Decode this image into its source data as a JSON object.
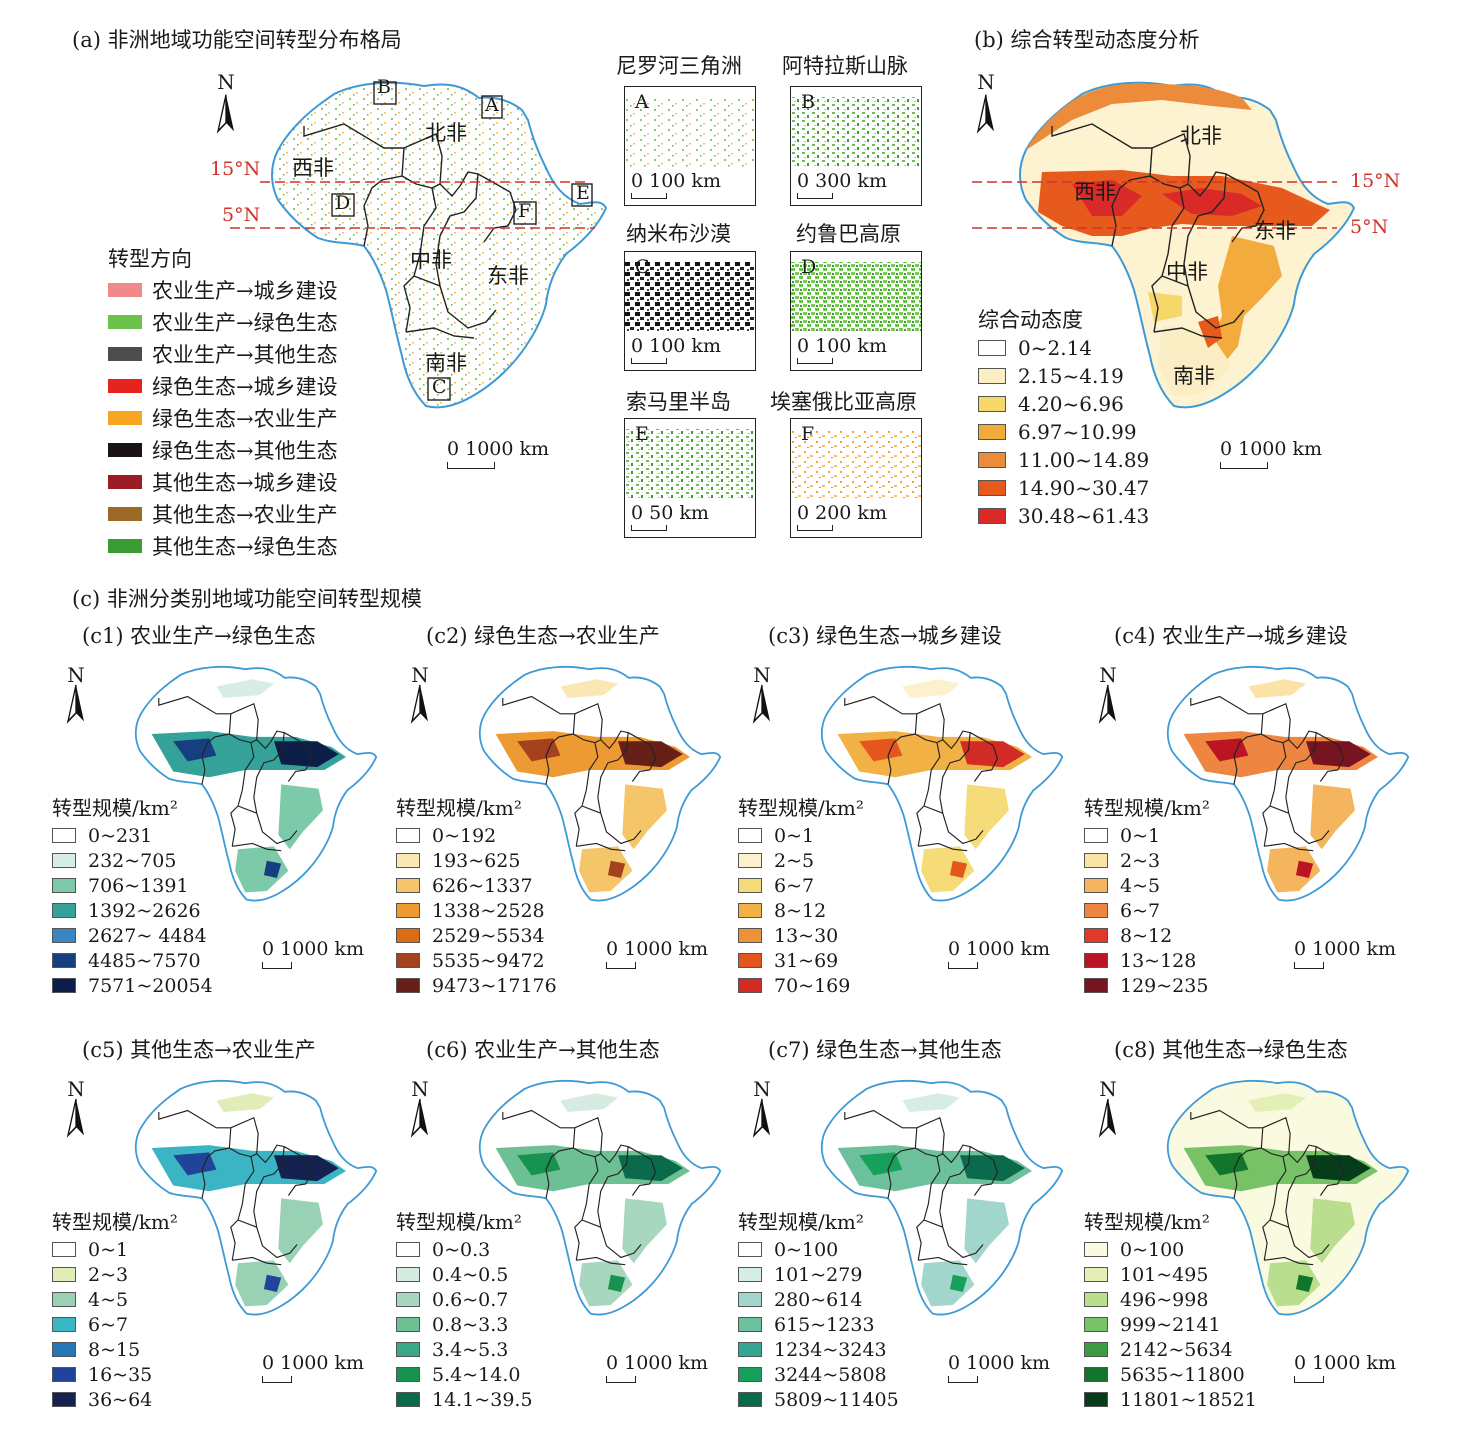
{
  "panel_a": {
    "title": "(a) 非洲地域功能空间转型分布格局",
    "north": "N",
    "lat_15": "15°N",
    "lat_5": "5°N",
    "regions": [
      "北非",
      "西非",
      "中非",
      "东非",
      "南非"
    ],
    "box_labels": [
      "A",
      "B",
      "C",
      "D",
      "E",
      "F"
    ],
    "scale": "0  1000 km",
    "legend_title": "转型方向",
    "legend": [
      {
        "label": "农业生产→城乡建设",
        "color": "#f08a8a"
      },
      {
        "label": "农业生产→绿色生态",
        "color": "#6cc24a"
      },
      {
        "label": "农业生产→其他生态",
        "color": "#4d4d4d"
      },
      {
        "label": "绿色生态→城乡建设",
        "color": "#e52420"
      },
      {
        "label": "绿色生态→农业生产",
        "color": "#f5a623"
      },
      {
        "label": "绿色生态→其他生态",
        "color": "#1a1414"
      },
      {
        "label": "其他生态→城乡建设",
        "color": "#9b1c24"
      },
      {
        "label": "其他生态→农业生产",
        "color": "#9c6a24"
      },
      {
        "label": "其他生态→绿色生态",
        "color": "#3b9b34"
      }
    ]
  },
  "insets": [
    {
      "title": "尼罗河三角洲",
      "letter": "A",
      "scale": "0   100 km"
    },
    {
      "title": "阿特拉斯山脉",
      "letter": "B",
      "scale": "0  300 km"
    },
    {
      "title": "纳米布沙漠",
      "letter": "C",
      "scale": "0   100 km"
    },
    {
      "title": "约鲁巴高原",
      "letter": "D",
      "scale": "0   100 km"
    },
    {
      "title": "索马里半岛",
      "letter": "E",
      "scale": "0  50 km"
    },
    {
      "title": "埃塞俄比亚高原",
      "letter": "F",
      "scale": "0  200 km"
    }
  ],
  "panel_b": {
    "title": "(b) 综合转型动态度分析",
    "north": "N",
    "lat_15": "15°N",
    "lat_5": "5°N",
    "regions": [
      "北非",
      "西非",
      "东非",
      "中非",
      "南非"
    ],
    "scale": "0  1000 km",
    "legend_title": "综合动态度",
    "legend": [
      {
        "label": "0~2.14",
        "color": "#ffffff"
      },
      {
        "label": "2.15~4.19",
        "color": "#fbeec4"
      },
      {
        "label": "4.20~6.96",
        "color": "#f6d76a"
      },
      {
        "label": "6.97~10.99",
        "color": "#f2ab3c"
      },
      {
        "label": "11.00~14.89",
        "color": "#ec8b3a"
      },
      {
        "label": "14.90~30.47",
        "color": "#e75a1e"
      },
      {
        "label": "30.48~61.43",
        "color": "#d92a27"
      }
    ]
  },
  "panel_c": {
    "title": "(c) 非洲分类别地域功能空间转型规模",
    "legend_title": "转型规模/km²",
    "north": "N",
    "scale": "0  1000 km",
    "maps": [
      {
        "title": "(c1) 农业生产→绿色生态",
        "legend": [
          {
            "label": "0~231",
            "color": "#ffffff"
          },
          {
            "label": "232~705",
            "color": "#d7eee4"
          },
          {
            "label": "706~1391",
            "color": "#7ccaa9"
          },
          {
            "label": "1392~2626",
            "color": "#35a29a"
          },
          {
            "label": "2627~ 4484",
            "color": "#3a86c2"
          },
          {
            "label": "4485~7570",
            "color": "#163f80"
          },
          {
            "label": "7571~20054",
            "color": "#0c1d47"
          }
        ]
      },
      {
        "title": "(c2) 绿色生态→农业生产",
        "legend": [
          {
            "label": "0~192",
            "color": "#ffffff"
          },
          {
            "label": "193~625",
            "color": "#fbe7b3"
          },
          {
            "label": "626~1337",
            "color": "#f5c56a"
          },
          {
            "label": "1338~2528",
            "color": "#ee9a32"
          },
          {
            "label": "2529~5534",
            "color": "#dc6c14"
          },
          {
            "label": "5535~9472",
            "color": "#a5421d"
          },
          {
            "label": "9473~17176",
            "color": "#672017"
          }
        ]
      },
      {
        "title": "(c3) 绿色生态→城乡建设",
        "legend": [
          {
            "label": "0~1",
            "color": "#ffffff"
          },
          {
            "label": "2~5",
            "color": "#fdf0cd"
          },
          {
            "label": "6~7",
            "color": "#f6dc78"
          },
          {
            "label": "8~12",
            "color": "#f2b144"
          },
          {
            "label": "13~30",
            "color": "#ec923a"
          },
          {
            "label": "31~69",
            "color": "#e4561b"
          },
          {
            "label": "70~169",
            "color": "#d22a25"
          }
        ]
      },
      {
        "title": "(c4) 农业生产→城乡建设",
        "legend": [
          {
            "label": "0~1",
            "color": "#ffffff"
          },
          {
            "label": "2~3",
            "color": "#fbe2a6"
          },
          {
            "label": "4~5",
            "color": "#f5b45e"
          },
          {
            "label": "6~7",
            "color": "#ee8540"
          },
          {
            "label": "8~12",
            "color": "#e1392a"
          },
          {
            "label": "13~128",
            "color": "#bb1523"
          },
          {
            "label": "129~235",
            "color": "#76151f"
          }
        ]
      },
      {
        "title": "(c5) 其他生态→农业生产",
        "legend": [
          {
            "label": "0~1",
            "color": "#ffffff"
          },
          {
            "label": "2~3",
            "color": "#e0edb8"
          },
          {
            "label": "4~5",
            "color": "#98d1b3"
          },
          {
            "label": "6~7",
            "color": "#3bb5c4"
          },
          {
            "label": "8~15",
            "color": "#2377b7"
          },
          {
            "label": "16~35",
            "color": "#22439a"
          },
          {
            "label": "36~64",
            "color": "#15214f"
          }
        ]
      },
      {
        "title": "(c6) 农业生产→其他生态",
        "legend": [
          {
            "label": "0~0.3",
            "color": "#ffffff"
          },
          {
            "label": "0.4~0.5",
            "color": "#d6ece0"
          },
          {
            "label": "0.6~0.7",
            "color": "#a7d7bf"
          },
          {
            "label": "0.8~3.3",
            "color": "#6cc094"
          },
          {
            "label": "3.4~5.3",
            "color": "#3aa887"
          },
          {
            "label": "5.4~14.0",
            "color": "#17924f"
          },
          {
            "label": "14.1~39.5",
            "color": "#0b6a4c"
          }
        ]
      },
      {
        "title": "(c7) 绿色生态→其他生态",
        "legend": [
          {
            "label": "0~100",
            "color": "#ffffff"
          },
          {
            "label": "101~279",
            "color": "#d6ece7"
          },
          {
            "label": "280~614",
            "color": "#a2d6cc"
          },
          {
            "label": "615~1233",
            "color": "#6cc09b"
          },
          {
            "label": "1234~3243",
            "color": "#33a792"
          },
          {
            "label": "3244~5808",
            "color": "#16a05c"
          },
          {
            "label": "5809~11405",
            "color": "#0b6a4c"
          }
        ]
      },
      {
        "title": "(c8) 其他生态→绿色生态",
        "legend": [
          {
            "label": "0~100",
            "color": "#fafae0"
          },
          {
            "label": "101~495",
            "color": "#e3efb6"
          },
          {
            "label": "496~998",
            "color": "#b8de8e"
          },
          {
            "label": "999~2141",
            "color": "#77c166"
          },
          {
            "label": "2142~5634",
            "color": "#3b9a42"
          },
          {
            "label": "5635~11800",
            "color": "#11752c"
          },
          {
            "label": "11801~18521",
            "color": "#063c1a"
          }
        ]
      }
    ]
  }
}
